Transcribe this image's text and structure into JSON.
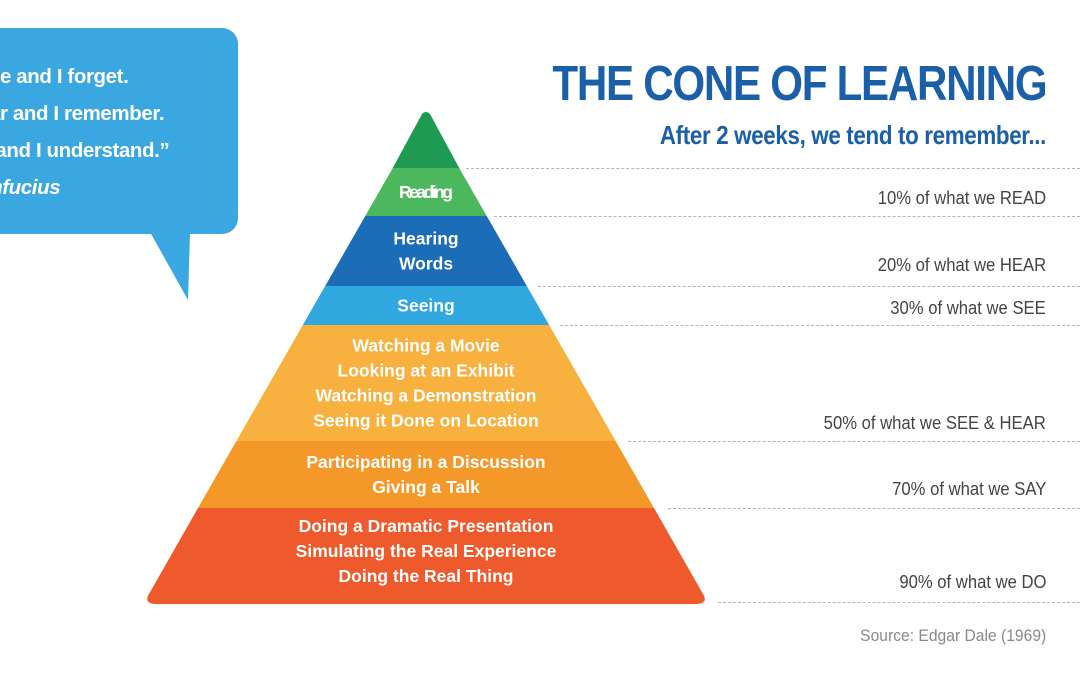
{
  "quote": {
    "lines": [
      "see and I forget.",
      "ear and I remember.",
      "o and I understand.”"
    ],
    "author": "onfucius"
  },
  "title": "THE CONE OF LEARNING",
  "subtitle": "After 2 weeks, we tend to remember...",
  "tiers": [
    {
      "name": "apex",
      "lines": [],
      "color": "#1e9a52"
    },
    {
      "name": "reading",
      "lines": [
        "Reading"
      ],
      "color": "#4cb85e"
    },
    {
      "name": "hearing",
      "lines": [
        "Hearing",
        "Words"
      ],
      "color": "#1b6db8"
    },
    {
      "name": "seeing",
      "lines": [
        "Seeing"
      ],
      "color": "#31a7df"
    },
    {
      "name": "watching",
      "lines": [
        "Watching a Movie",
        "Looking at an Exhibit",
        "Watching a Demonstration",
        "Seeing it Done on Location"
      ],
      "color": "#f8b03e"
    },
    {
      "name": "participating",
      "lines": [
        "Participating in a Discussion",
        "Giving a Talk"
      ],
      "color": "#f5982a"
    },
    {
      "name": "doing",
      "lines": [
        "Doing a Dramatic Presentation",
        "Simulating the Real Experience",
        "Doing the Real Thing"
      ],
      "color": "#ee5a2b"
    }
  ],
  "retention": [
    "10% of what we READ",
    "20% of what we HEAR",
    "30% of what we SEE",
    "50% of what we SEE & HEAR",
    "70% of what we SAY",
    "90% of what we DO"
  ],
  "source": "Source: Edgar Dale (1969)"
}
